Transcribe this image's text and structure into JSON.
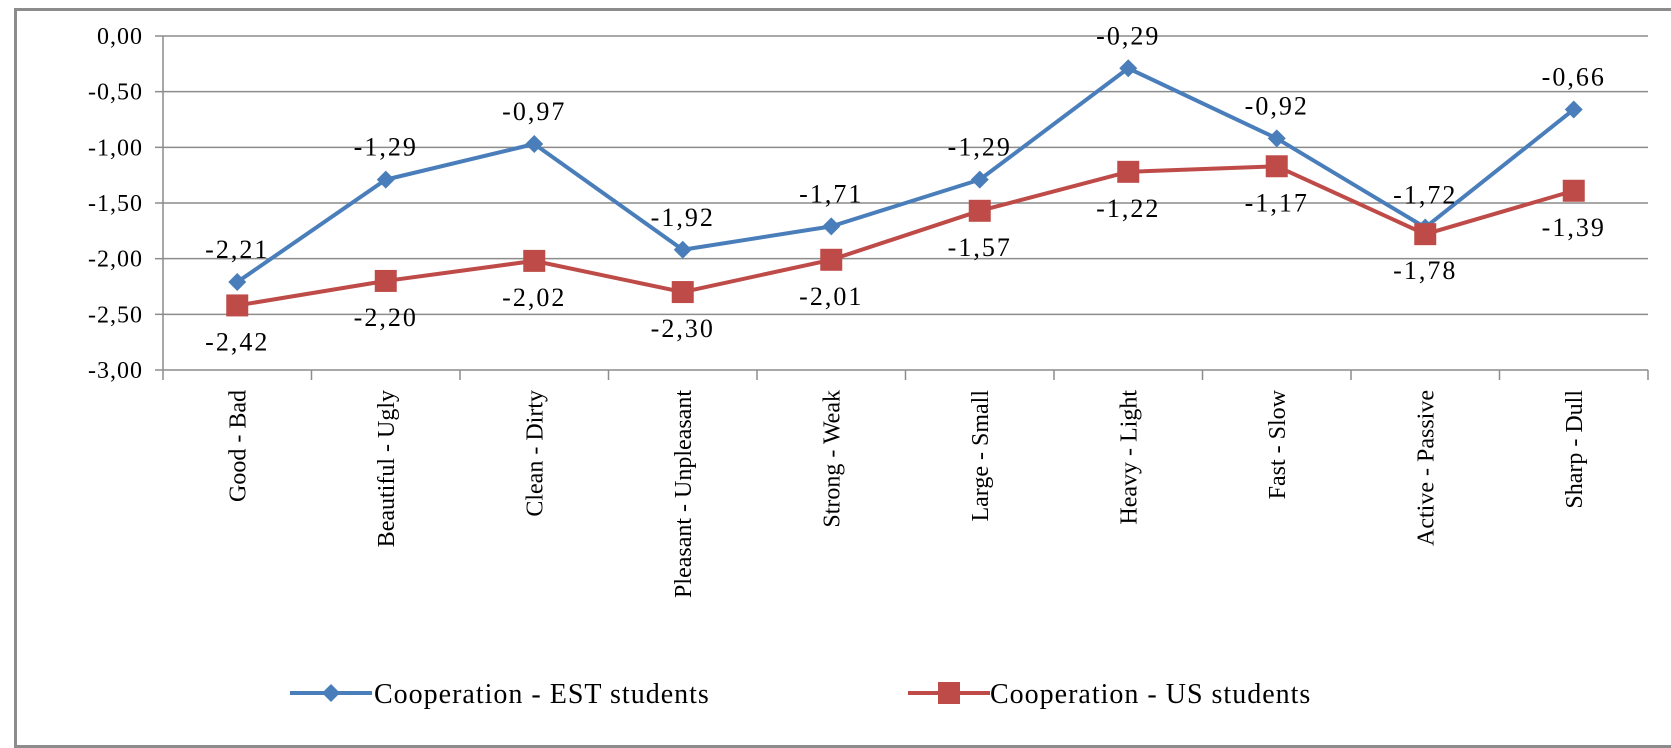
{
  "chart_data": {
    "type": "line",
    "categories": [
      "Good - Bad",
      "Beautiful - Ugly",
      "Clean - Dirty",
      "Pleasant - Unpleasant",
      "Strong - Weak",
      "Large - Small",
      "Heavy - Light",
      "Fast - Slow",
      "Active - Passive",
      "Sharp - Dull"
    ],
    "series": [
      {
        "name": "Cooperation - EST students",
        "color": "#4a7ebb",
        "marker": "diamond",
        "values": [
          -2.21,
          -1.29,
          -0.97,
          -1.92,
          -1.71,
          -1.29,
          -0.29,
          -0.92,
          -1.72,
          -0.66
        ],
        "labels": [
          "-2,21",
          "-1,29",
          "-0,97",
          "-1,92",
          "-1,71",
          "-1,29",
          "-0,29",
          "-0,92",
          "-1,72",
          "-0,66"
        ]
      },
      {
        "name": "Cooperation - US students",
        "color": "#be4b48",
        "marker": "square",
        "values": [
          -2.42,
          -2.2,
          -2.02,
          -2.3,
          -2.01,
          -1.57,
          -1.22,
          -1.17,
          -1.78,
          -1.39
        ],
        "labels": [
          "-2,42",
          "-2,20",
          "-2,02",
          "-2,30",
          "-2,01",
          "-1,57",
          "-1,22",
          "-1,17",
          "-1,78",
          "-1,39"
        ]
      }
    ],
    "y_ticks": [
      0,
      -0.5,
      -1,
      -1.5,
      -2,
      -2.5,
      -3
    ],
    "y_tick_labels": [
      "0,00",
      "-0,50",
      "-1,00",
      "-1,50",
      "-2,00",
      "-2,50",
      "-3,00"
    ],
    "ylim": [
      -3,
      0
    ],
    "grid": true,
    "legend_position": "bottom"
  }
}
